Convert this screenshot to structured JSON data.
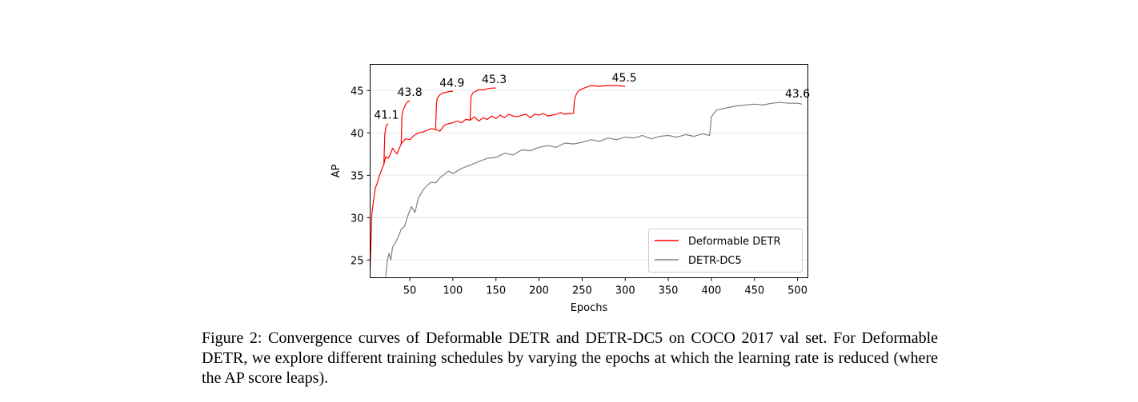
{
  "chart_data": {
    "type": "line",
    "title": "",
    "xlabel": "Epochs",
    "ylabel": "AP",
    "xlim": [
      4,
      512
    ],
    "ylim": [
      22.9,
      48.1
    ],
    "xticks": [
      50,
      100,
      150,
      200,
      250,
      300,
      350,
      400,
      450,
      500
    ],
    "yticks": [
      25,
      30,
      35,
      40,
      45
    ],
    "grid": "horizontal",
    "legend_position": "bottom-right",
    "series": [
      {
        "name": "Deformable DETR",
        "color": "#ff0000",
        "segments": [
          {
            "x": [
              4,
              5,
              6,
              8,
              10,
              12,
              15,
              18,
              20,
              22,
              25,
              28,
              30,
              35,
              40,
              45,
              50,
              55,
              60,
              65,
              70,
              75,
              80,
              85,
              90,
              95,
              100,
              105,
              110,
              115,
              120,
              125,
              130,
              135,
              140,
              145,
              150,
              155,
              160,
              165,
              170,
              175,
              180,
              185,
              190,
              195,
              200,
              205,
              210,
              215,
              220,
              225,
              230,
              235,
              240
            ],
            "y": [
              24,
              27,
              30.5,
              32,
              33.5,
              34,
              35,
              35.8,
              36.3,
              37.2,
              37,
              37.6,
              38.2,
              37.5,
              38.7,
              39.3,
              39.2,
              39.7,
              40,
              40.1,
              40.3,
              40.5,
              40.4,
              40.2,
              40.9,
              41.1,
              41.2,
              41.4,
              41.2,
              41.6,
              41.5,
              41.9,
              41.4,
              41.8,
              41.6,
              42,
              41.7,
              42.1,
              41.8,
              42.2,
              42,
              41.9,
              42.1,
              42.2,
              41.8,
              42.2,
              42.1,
              42.3,
              42,
              42.1,
              42.2,
              42.4,
              42.2,
              42.3,
              42.3
            ]
          },
          {
            "x": [
              20,
              21,
              22,
              23,
              24,
              25
            ],
            "y": [
              36.3,
              39.8,
              40.5,
              40.9,
              41,
              41.1
            ]
          },
          {
            "x": [
              40,
              41,
              42,
              44,
              46,
              48,
              50
            ],
            "y": [
              38.7,
              42.1,
              42.6,
              43.1,
              43.5,
              43.7,
              43.8
            ]
          },
          {
            "x": [
              80,
              81,
              82,
              85,
              88,
              92,
              96,
              100
            ],
            "y": [
              40.4,
              43.5,
              44.1,
              44.5,
              44.7,
              44.8,
              44.9,
              44.9
            ]
          },
          {
            "x": [
              120,
              121,
              123,
              126,
              130,
              135,
              140,
              145,
              150
            ],
            "y": [
              41.5,
              44.2,
              44.7,
              44.9,
              45.1,
              45.1,
              45.2,
              45.3,
              45.3
            ]
          },
          {
            "x": [
              240,
              241,
              243,
              246,
              250,
              255,
              260,
              270,
              280,
              290,
              300
            ],
            "y": [
              42.3,
              43.8,
              44.5,
              45,
              45.2,
              45.4,
              45.6,
              45.5,
              45.6,
              45.6,
              45.5
            ]
          }
        ]
      },
      {
        "name": "DETR-DC5",
        "color": "#808080",
        "segments": [
          {
            "x": [
              22,
              24,
              26,
              28,
              30,
              33,
              36,
              40,
              44,
              48,
              52,
              56,
              60,
              65,
              70,
              75,
              80,
              85,
              90,
              95,
              100,
              110,
              120,
              130,
              140,
              150,
              160,
              170,
              180,
              190,
              200,
              210,
              220,
              230,
              240,
              250,
              260,
              270,
              280,
              290,
              300,
              310,
              320,
              330,
              340,
              350,
              360,
              370,
              380,
              390,
              398,
              400,
              403,
              406,
              410,
              420,
              430,
              440,
              450,
              460,
              470,
              480,
              490,
              500,
              505
            ],
            "y": [
              23,
              25,
              25.8,
              25,
              26.5,
              27,
              27.6,
              28.6,
              29,
              30.3,
              31.3,
              30.6,
              32.3,
              33.2,
              33.8,
              34.2,
              34.1,
              34.7,
              35.1,
              35.5,
              35.2,
              35.8,
              36.2,
              36.6,
              37,
              37.1,
              37.6,
              37.4,
              38,
              37.9,
              38.3,
              38.5,
              38.3,
              38.8,
              38.7,
              38.9,
              39.2,
              39,
              39.4,
              39.2,
              39.5,
              39.4,
              39.7,
              39.3,
              39.6,
              39.7,
              39.5,
              39.8,
              39.6,
              39.9,
              39.7,
              41.9,
              42.3,
              42.7,
              42.8,
              43,
              43.2,
              43.3,
              43.4,
              43.3,
              43.5,
              43.6,
              43.5,
              43.5,
              43.4
            ]
          }
        ]
      }
    ],
    "annotations": [
      {
        "text": "41.1",
        "x": 23,
        "y": 41.1
      },
      {
        "text": "43.8",
        "x": 50,
        "y": 43.8
      },
      {
        "text": "44.9",
        "x": 99,
        "y": 44.9
      },
      {
        "text": "45.3",
        "x": 148,
        "y": 45.3
      },
      {
        "text": "45.5",
        "x": 299,
        "y": 45.5
      },
      {
        "text": "43.6",
        "x": 500,
        "y": 43.6
      }
    ]
  },
  "caption": "Figure 2: Convergence curves of Deformable DETR and DETR-DC5 on COCO 2017 val set. For Deformable DETR, we explore different training schedules by varying the epochs at which the learning rate is reduced (where the AP score leaps)."
}
